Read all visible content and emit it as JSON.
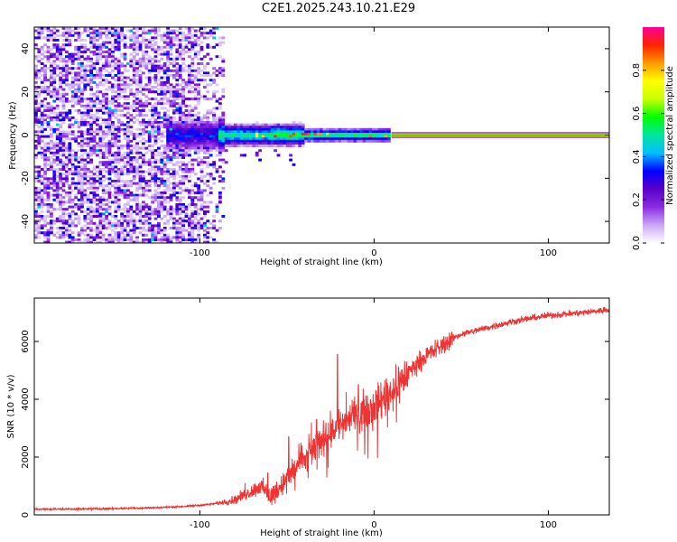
{
  "figure": {
    "title": "C2E1.2025.243.10.21.E29"
  },
  "chart_data": [
    {
      "type": "heatmap",
      "title": "C2E1.2025.243.10.21.E29",
      "xlabel": "Height of straight line (km)",
      "ylabel": "Frequency (Hz)",
      "xlim": [
        -195,
        135
      ],
      "ylim": [
        -50,
        50
      ],
      "xticks": [
        -100,
        0,
        100
      ],
      "yticks": [
        -40,
        -20,
        0,
        20,
        40
      ],
      "colorbar": {
        "label": "Normalized spectral amplitude",
        "range": [
          0,
          1
        ],
        "ticks": [
          0.0,
          0.2,
          0.4,
          0.6,
          0.8
        ],
        "stops": [
          "#ffffff",
          "#c9a8f5",
          "#8b2be2",
          "#5a00c8",
          "#0000ff",
          "#00bfff",
          "#00e5a0",
          "#00ff00",
          "#c8ff00",
          "#ffff00",
          "#ff9900",
          "#ff2200",
          "#ff0099"
        ]
      },
      "features": {
        "carrier_start_km": 10,
        "carrier_frequency_hz": 0,
        "carrier_amplitude": 0.9,
        "concentrated_band_km": [
          -120,
          10
        ],
        "broadband_noise_km": [
          -195,
          -85
        ]
      }
    },
    {
      "type": "line",
      "xlabel": "Height of straight line (km)",
      "ylabel": "SNR (10 * v/v)",
      "xlim": [
        -195,
        135
      ],
      "ylim": [
        0,
        7500
      ],
      "xticks": [
        -100,
        0,
        100
      ],
      "yticks": [
        0,
        2000,
        4000,
        6000
      ],
      "series": [
        {
          "name": "SNR",
          "color": "#ee3333",
          "x": [
            -195,
            -180,
            -160,
            -140,
            -120,
            -110,
            -100,
            -90,
            -80,
            -72,
            -65,
            -60,
            -55,
            -50,
            -45,
            -40,
            -35,
            -30,
            -25,
            -20,
            -15,
            -10,
            -5,
            0,
            5,
            10,
            15,
            20,
            25,
            30,
            35,
            40,
            45,
            50,
            60,
            70,
            80,
            90,
            100,
            110,
            120,
            135
          ],
          "values": [
            200,
            200,
            210,
            230,
            260,
            290,
            330,
            400,
            520,
            760,
            1000,
            650,
            900,
            1250,
            1650,
            1950,
            2250,
            2600,
            2900,
            3150,
            3300,
            3450,
            3650,
            3800,
            4000,
            4250,
            4600,
            4950,
            5250,
            5500,
            5700,
            5900,
            6100,
            6250,
            6400,
            6550,
            6700,
            6800,
            6900,
            6950,
            7000,
            7100
          ],
          "spikes": [
            {
              "x": -74,
              "y": 1100
            },
            {
              "x": -61,
              "y": 1450
            },
            {
              "x": -49,
              "y": 2700
            },
            {
              "x": -42,
              "y": 2500
            },
            {
              "x": -36,
              "y": 3200
            },
            {
              "x": -33,
              "y": 3300
            },
            {
              "x": -21,
              "y": 5550
            },
            {
              "x": -16,
              "y": 4250
            },
            {
              "x": -9,
              "y": 4500
            },
            {
              "x": -2,
              "y": 4000
            },
            {
              "x": 7,
              "y": 4700
            },
            {
              "x": 14,
              "y": 5100
            }
          ]
        }
      ]
    }
  ]
}
